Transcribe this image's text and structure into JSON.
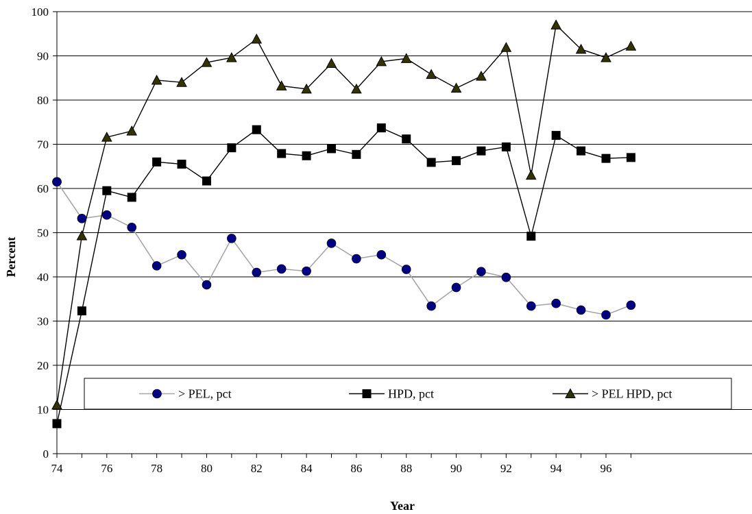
{
  "chart_data": {
    "type": "line",
    "title": "",
    "xlabel": "Year",
    "ylabel": "Percent",
    "x": [
      74,
      75,
      76,
      77,
      78,
      79,
      80,
      81,
      82,
      83,
      84,
      85,
      86,
      87,
      88,
      89,
      90,
      91,
      92,
      93,
      94,
      95,
      96,
      97
    ],
    "xticks": [
      "74",
      "76",
      "78",
      "80",
      "82",
      "84",
      "86",
      "88",
      "90",
      "92",
      "94",
      "96"
    ],
    "yticks": [
      "0",
      "10",
      "20",
      "30",
      "40",
      "50",
      "60",
      "70",
      "80",
      "90",
      "100"
    ],
    "ylim": [
      0,
      100
    ],
    "xlim": [
      74,
      96.8
    ],
    "grid": "horizontal",
    "legend_position": "lower-middle",
    "series": [
      {
        "name": "> PEL, pct",
        "marker": "circle",
        "marker_color": "#000080",
        "line_color": "#a6a6a6",
        "values": [
          61.5,
          53.2,
          54.0,
          51.2,
          42.5,
          45.0,
          38.2,
          48.7,
          41.0,
          41.8,
          41.3,
          47.6,
          44.1,
          45.0,
          41.7,
          33.4,
          37.6,
          41.2,
          39.9,
          33.4,
          34.0,
          32.5,
          31.4,
          33.6
        ]
      },
      {
        "name": "HPD, pct",
        "marker": "square",
        "marker_color": "#000000",
        "line_color": "#000000",
        "values": [
          6.8,
          32.3,
          59.5,
          58.0,
          66.0,
          65.5,
          61.7,
          69.2,
          73.3,
          67.9,
          67.4,
          69.0,
          67.7,
          73.7,
          71.2,
          65.9,
          66.3,
          68.5,
          69.4,
          49.2,
          72.0,
          68.5,
          66.8,
          67.0
        ]
      },
      {
        "name": "> PEL HPD, pct",
        "marker": "triangle",
        "marker_color": "#333300",
        "line_color": "#000000",
        "values": [
          11.0,
          49.3,
          71.6,
          73.0,
          84.5,
          84.0,
          88.5,
          89.6,
          93.8,
          83.2,
          82.5,
          88.3,
          82.5,
          88.7,
          89.4,
          85.8,
          82.7,
          85.4,
          91.9,
          63.0,
          97.0,
          91.5,
          89.6,
          92.2
        ]
      }
    ]
  }
}
